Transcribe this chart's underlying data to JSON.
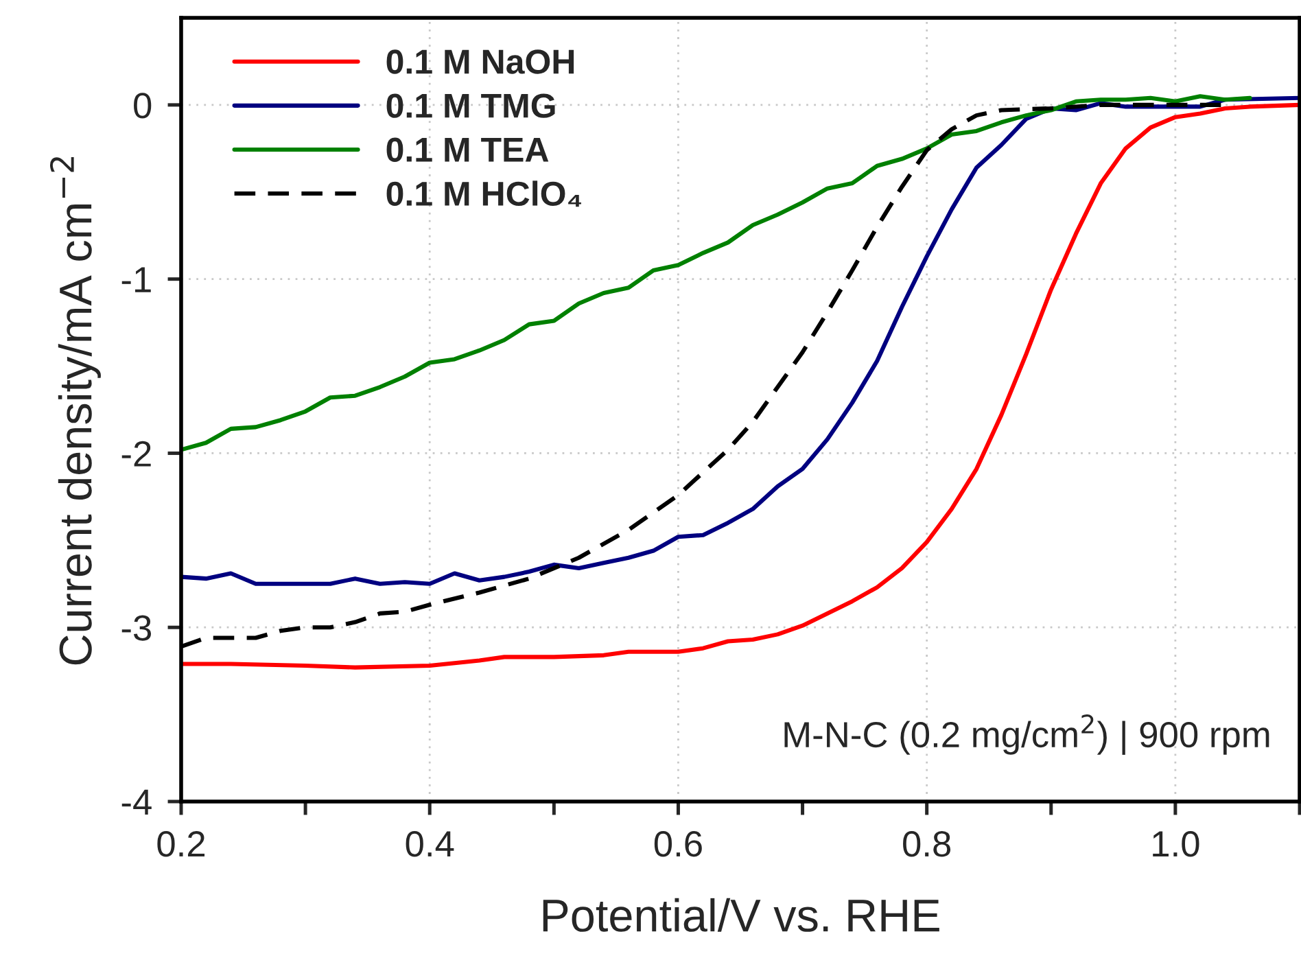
{
  "chart_data": {
    "type": "line",
    "xlabel": "Potential/V vs. RHE",
    "ylabel": "Current density/mA cm$^{−2}$",
    "xlim": [
      0.2,
      1.1
    ],
    "ylim": [
      -4,
      0.5
    ],
    "xticks": [
      0.2,
      {
        "value": 0.3,
        "label": null
      },
      0.4,
      {
        "value": 0.5,
        "label": null
      },
      0.6,
      {
        "value": 0.7,
        "label": null
      },
      0.8,
      {
        "value": 0.9,
        "label": null
      },
      {
        "value": 1.0,
        "label": "1.0"
      },
      {
        "value": 1.1,
        "label": null
      }
    ],
    "yticks": [
      -4,
      -3,
      -2,
      -1,
      0
    ],
    "grid": true,
    "legend": "top left",
    "annotations": [
      "M-N-C (0.2 mg/cm$^{2}$) | 900 rpm"
    ],
    "series": [
      {
        "name": "0.1 M NaOH",
        "color": "#ff0000",
        "line_style": "solid",
        "x": [
          0.2,
          0.24,
          0.3,
          0.34,
          0.4,
          0.44,
          0.46,
          0.5,
          0.54,
          0.56,
          0.6,
          0.62,
          0.64,
          0.66,
          0.68,
          0.7,
          0.72,
          0.74,
          0.76,
          0.78,
          0.8,
          0.82,
          0.84,
          0.86,
          0.88,
          0.9,
          0.92,
          0.94,
          0.96,
          0.98,
          1.0,
          1.02,
          1.04,
          1.06,
          1.1
        ],
        "values": [
          -3.21,
          -3.21,
          -3.22,
          -3.23,
          -3.22,
          -3.19,
          -3.17,
          -3.17,
          -3.16,
          -3.14,
          -3.14,
          -3.12,
          -3.08,
          -3.07,
          -3.04,
          -2.99,
          -2.92,
          -2.85,
          -2.77,
          -2.66,
          -2.51,
          -2.32,
          -2.09,
          -1.78,
          -1.43,
          -1.06,
          -0.74,
          -0.45,
          -0.25,
          -0.13,
          -0.07,
          -0.05,
          -0.02,
          -0.01,
          0.0
        ]
      },
      {
        "name": "0.1 M TMG",
        "color": "#000080",
        "line_style": "solid",
        "x": [
          0.2,
          0.22,
          0.24,
          0.26,
          0.3,
          0.32,
          0.34,
          0.36,
          0.38,
          0.4,
          0.42,
          0.44,
          0.46,
          0.48,
          0.5,
          0.52,
          0.54,
          0.56,
          0.58,
          0.6,
          0.62,
          0.64,
          0.66,
          0.68,
          0.7,
          0.72,
          0.74,
          0.76,
          0.78,
          0.8,
          0.82,
          0.84,
          0.86,
          0.88,
          0.9,
          0.92,
          0.94,
          0.96,
          1.0,
          1.02,
          1.04,
          1.1
        ],
        "values": [
          -2.71,
          -2.72,
          -2.69,
          -2.75,
          -2.75,
          -2.75,
          -2.72,
          -2.75,
          -2.74,
          -2.75,
          -2.69,
          -2.73,
          -2.71,
          -2.68,
          -2.64,
          -2.66,
          -2.63,
          -2.6,
          -2.56,
          -2.48,
          -2.47,
          -2.4,
          -2.32,
          -2.19,
          -2.09,
          -1.92,
          -1.71,
          -1.47,
          -1.16,
          -0.87,
          -0.6,
          -0.36,
          -0.23,
          -0.08,
          -0.02,
          -0.03,
          0.01,
          -0.01,
          -0.01,
          -0.01,
          0.03,
          0.04
        ]
      },
      {
        "name": "0.1 M TEA",
        "color": "#008000",
        "line_style": "solid",
        "x": [
          0.2,
          0.22,
          0.24,
          0.26,
          0.28,
          0.3,
          0.32,
          0.34,
          0.36,
          0.38,
          0.4,
          0.42,
          0.44,
          0.46,
          0.48,
          0.5,
          0.52,
          0.54,
          0.56,
          0.58,
          0.6,
          0.62,
          0.64,
          0.66,
          0.68,
          0.7,
          0.72,
          0.74,
          0.76,
          0.78,
          0.8,
          0.82,
          0.84,
          0.86,
          0.88,
          0.9,
          0.92,
          0.94,
          0.96,
          0.98,
          1.0,
          1.02,
          1.04,
          1.06
        ],
        "values": [
          -1.98,
          -1.94,
          -1.86,
          -1.85,
          -1.81,
          -1.76,
          -1.68,
          -1.67,
          -1.62,
          -1.56,
          -1.48,
          -1.46,
          -1.41,
          -1.35,
          -1.26,
          -1.24,
          -1.14,
          -1.08,
          -1.05,
          -0.95,
          -0.92,
          -0.85,
          -0.79,
          -0.69,
          -0.63,
          -0.56,
          -0.48,
          -0.45,
          -0.35,
          -0.31,
          -0.25,
          -0.17,
          -0.15,
          -0.1,
          -0.06,
          -0.03,
          0.02,
          0.03,
          0.03,
          0.04,
          0.02,
          0.05,
          0.03,
          0.04
        ]
      },
      {
        "name": "0.1 M HClO₄",
        "color": "#000000",
        "line_style": "dashed",
        "x": [
          0.2,
          0.22,
          0.26,
          0.28,
          0.3,
          0.32,
          0.34,
          0.36,
          0.38,
          0.4,
          0.44,
          0.48,
          0.52,
          0.56,
          0.6,
          0.64,
          0.66,
          0.68,
          0.7,
          0.72,
          0.74,
          0.76,
          0.78,
          0.8,
          0.82,
          0.84,
          0.86,
          0.9,
          0.94,
          1.04
        ],
        "values": [
          -3.11,
          -3.06,
          -3.06,
          -3.02,
          -3.0,
          -3.0,
          -2.97,
          -2.92,
          -2.91,
          -2.87,
          -2.8,
          -2.72,
          -2.6,
          -2.44,
          -2.24,
          -1.98,
          -1.82,
          -1.62,
          -1.42,
          -1.19,
          -0.95,
          -0.7,
          -0.47,
          -0.26,
          -0.14,
          -0.06,
          -0.03,
          -0.02,
          0.0,
          0.0
        ]
      }
    ]
  }
}
